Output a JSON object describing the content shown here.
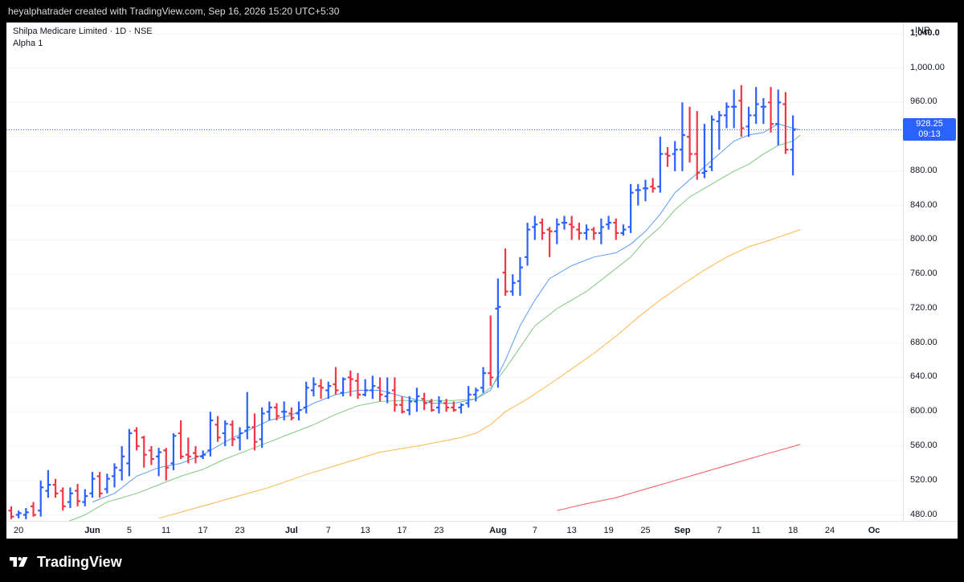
{
  "header": {
    "attribution": "heyalphatrader created with TradingView.com, Sep 16, 2026 15:20 UTC+5:30"
  },
  "legend": {
    "symbol_line": "Shilpa Medicare Limited · 1D · NSE",
    "indicator": "Alpha 1"
  },
  "yaxis": {
    "unit": "INR",
    "labels": [
      "1,040.0",
      "1,000.00",
      "960.00",
      "920.00",
      "880.00",
      "840.00",
      "800.00",
      "760.00",
      "720.00",
      "680.00",
      "640.00",
      "600.00",
      "560.00",
      "520.00",
      "480.00"
    ]
  },
  "xaxis": {
    "labels": [
      "20",
      "Jun",
      "5",
      "11",
      "17",
      "23",
      "Jul",
      "7",
      "13",
      "17",
      "23",
      "Aug",
      "7",
      "13",
      "19",
      "25",
      "Sep",
      "7",
      "11",
      "18",
      "24",
      "Oc"
    ]
  },
  "last_price": {
    "value": "928.25",
    "countdown": "09:13"
  },
  "footer": {
    "brand": "TradingView"
  },
  "colors": {
    "up": "#2962ff",
    "down": "#f23645",
    "ma_fast": "#5b9cf6",
    "ma_mid": "#81c784",
    "ma_slow": "#ffb74d",
    "ma_long": "#f7525f",
    "price_line": "#2962ff"
  },
  "chart_data": {
    "type": "ohlc",
    "title": "Shilpa Medicare Limited · 1D · NSE",
    "ylim": [
      473,
      1053
    ],
    "bars": [
      {
        "o": 485,
        "h": 490,
        "l": 475,
        "c": 478
      },
      {
        "o": 480,
        "h": 485,
        "l": 476,
        "c": 482
      },
      {
        "o": 480,
        "h": 488,
        "l": 475,
        "c": 483
      },
      {
        "o": 490,
        "h": 495,
        "l": 478,
        "c": 480
      },
      {
        "o": 485,
        "h": 520,
        "l": 478,
        "c": 512
      },
      {
        "o": 508,
        "h": 532,
        "l": 500,
        "c": 515
      },
      {
        "o": 515,
        "h": 522,
        "l": 500,
        "c": 505
      },
      {
        "o": 508,
        "h": 512,
        "l": 485,
        "c": 490
      },
      {
        "o": 495,
        "h": 512,
        "l": 488,
        "c": 505
      },
      {
        "o": 508,
        "h": 516,
        "l": 490,
        "c": 496
      },
      {
        "o": 495,
        "h": 510,
        "l": 490,
        "c": 502
      },
      {
        "o": 505,
        "h": 530,
        "l": 500,
        "c": 522
      },
      {
        "o": 525,
        "h": 530,
        "l": 500,
        "c": 505
      },
      {
        "o": 510,
        "h": 528,
        "l": 505,
        "c": 522
      },
      {
        "o": 525,
        "h": 540,
        "l": 512,
        "c": 535
      },
      {
        "o": 532,
        "h": 560,
        "l": 520,
        "c": 548
      },
      {
        "o": 540,
        "h": 580,
        "l": 525,
        "c": 575
      },
      {
        "o": 578,
        "h": 582,
        "l": 555,
        "c": 560
      },
      {
        "o": 570,
        "h": 572,
        "l": 535,
        "c": 550
      },
      {
        "o": 555,
        "h": 560,
        "l": 538,
        "c": 545
      },
      {
        "o": 548,
        "h": 558,
        "l": 525,
        "c": 553
      },
      {
        "o": 555,
        "h": 558,
        "l": 520,
        "c": 535
      },
      {
        "o": 540,
        "h": 575,
        "l": 532,
        "c": 572
      },
      {
        "o": 575,
        "h": 590,
        "l": 545,
        "c": 548
      },
      {
        "o": 550,
        "h": 570,
        "l": 540,
        "c": 548
      },
      {
        "o": 552,
        "h": 560,
        "l": 540,
        "c": 548
      },
      {
        "o": 548,
        "h": 555,
        "l": 545,
        "c": 550
      },
      {
        "o": 555,
        "h": 600,
        "l": 548,
        "c": 590
      },
      {
        "o": 585,
        "h": 595,
        "l": 565,
        "c": 570
      },
      {
        "o": 575,
        "h": 590,
        "l": 560,
        "c": 586
      },
      {
        "o": 585,
        "h": 590,
        "l": 560,
        "c": 568
      },
      {
        "o": 570,
        "h": 582,
        "l": 555,
        "c": 575
      },
      {
        "o": 578,
        "h": 623,
        "l": 568,
        "c": 582
      },
      {
        "o": 582,
        "h": 598,
        "l": 555,
        "c": 565
      },
      {
        "o": 568,
        "h": 605,
        "l": 558,
        "c": 598
      },
      {
        "o": 600,
        "h": 612,
        "l": 590,
        "c": 605
      },
      {
        "o": 605,
        "h": 610,
        "l": 590,
        "c": 595
      },
      {
        "o": 600,
        "h": 612,
        "l": 590,
        "c": 600
      },
      {
        "o": 598,
        "h": 605,
        "l": 590,
        "c": 593
      },
      {
        "o": 598,
        "h": 612,
        "l": 590,
        "c": 602
      },
      {
        "o": 605,
        "h": 635,
        "l": 598,
        "c": 628
      },
      {
        "o": 625,
        "h": 640,
        "l": 618,
        "c": 632
      },
      {
        "o": 630,
        "h": 638,
        "l": 615,
        "c": 628
      },
      {
        "o": 625,
        "h": 635,
        "l": 615,
        "c": 630
      },
      {
        "o": 632,
        "h": 652,
        "l": 620,
        "c": 625
      },
      {
        "o": 622,
        "h": 640,
        "l": 618,
        "c": 638
      },
      {
        "o": 640,
        "h": 648,
        "l": 618,
        "c": 638
      },
      {
        "o": 636,
        "h": 645,
        "l": 615,
        "c": 620
      },
      {
        "o": 620,
        "h": 638,
        "l": 618,
        "c": 625
      },
      {
        "o": 625,
        "h": 642,
        "l": 615,
        "c": 630
      },
      {
        "o": 628,
        "h": 640,
        "l": 612,
        "c": 620
      },
      {
        "o": 618,
        "h": 640,
        "l": 610,
        "c": 622
      },
      {
        "o": 625,
        "h": 640,
        "l": 600,
        "c": 608
      },
      {
        "o": 608,
        "h": 618,
        "l": 598,
        "c": 600
      },
      {
        "o": 602,
        "h": 618,
        "l": 596,
        "c": 612
      },
      {
        "o": 612,
        "h": 628,
        "l": 600,
        "c": 618
      },
      {
        "o": 615,
        "h": 622,
        "l": 602,
        "c": 610
      },
      {
        "o": 612,
        "h": 615,
        "l": 600,
        "c": 602
      },
      {
        "o": 605,
        "h": 618,
        "l": 598,
        "c": 612
      },
      {
        "o": 610,
        "h": 615,
        "l": 600,
        "c": 605
      },
      {
        "o": 605,
        "h": 612,
        "l": 600,
        "c": 602
      },
      {
        "o": 605,
        "h": 610,
        "l": 598,
        "c": 608
      },
      {
        "o": 610,
        "h": 630,
        "l": 605,
        "c": 620
      },
      {
        "o": 620,
        "h": 628,
        "l": 612,
        "c": 625
      },
      {
        "o": 628,
        "h": 652,
        "l": 622,
        "c": 645
      },
      {
        "o": 645,
        "h": 712,
        "l": 630,
        "c": 640
      },
      {
        "o": 720,
        "h": 755,
        "l": 628,
        "c": 722
      },
      {
        "o": 762,
        "h": 790,
        "l": 735,
        "c": 740
      },
      {
        "o": 740,
        "h": 760,
        "l": 735,
        "c": 750
      },
      {
        "o": 752,
        "h": 780,
        "l": 735,
        "c": 768
      },
      {
        "o": 780,
        "h": 820,
        "l": 770,
        "c": 812
      },
      {
        "o": 815,
        "h": 828,
        "l": 800,
        "c": 818
      },
      {
        "o": 820,
        "h": 825,
        "l": 800,
        "c": 808
      },
      {
        "o": 812,
        "h": 815,
        "l": 780,
        "c": 810
      },
      {
        "o": 810,
        "h": 825,
        "l": 795,
        "c": 818
      },
      {
        "o": 820,
        "h": 828,
        "l": 812,
        "c": 820
      },
      {
        "o": 818,
        "h": 828,
        "l": 800,
        "c": 815
      },
      {
        "o": 812,
        "h": 820,
        "l": 800,
        "c": 808
      },
      {
        "o": 808,
        "h": 818,
        "l": 800,
        "c": 812
      },
      {
        "o": 812,
        "h": 815,
        "l": 800,
        "c": 808
      },
      {
        "o": 808,
        "h": 825,
        "l": 795,
        "c": 815
      },
      {
        "o": 818,
        "h": 828,
        "l": 812,
        "c": 820
      },
      {
        "o": 820,
        "h": 825,
        "l": 800,
        "c": 808
      },
      {
        "o": 808,
        "h": 818,
        "l": 805,
        "c": 812
      },
      {
        "o": 815,
        "h": 865,
        "l": 808,
        "c": 855
      },
      {
        "o": 858,
        "h": 865,
        "l": 840,
        "c": 858
      },
      {
        "o": 860,
        "h": 870,
        "l": 845,
        "c": 860
      },
      {
        "o": 862,
        "h": 872,
        "l": 855,
        "c": 860
      },
      {
        "o": 862,
        "h": 920,
        "l": 855,
        "c": 900
      },
      {
        "o": 900,
        "h": 908,
        "l": 885,
        "c": 898
      },
      {
        "o": 900,
        "h": 915,
        "l": 880,
        "c": 905
      },
      {
        "o": 905,
        "h": 960,
        "l": 880,
        "c": 922
      },
      {
        "o": 920,
        "h": 955,
        "l": 890,
        "c": 900
      },
      {
        "o": 900,
        "h": 950,
        "l": 870,
        "c": 878
      },
      {
        "o": 878,
        "h": 935,
        "l": 872,
        "c": 880
      },
      {
        "o": 885,
        "h": 945,
        "l": 880,
        "c": 940
      },
      {
        "o": 938,
        "h": 950,
        "l": 905,
        "c": 945
      },
      {
        "o": 945,
        "h": 960,
        "l": 930,
        "c": 955
      },
      {
        "o": 955,
        "h": 975,
        "l": 930,
        "c": 955
      },
      {
        "o": 962,
        "h": 980,
        "l": 920,
        "c": 930
      },
      {
        "o": 932,
        "h": 955,
        "l": 920,
        "c": 945
      },
      {
        "o": 945,
        "h": 978,
        "l": 935,
        "c": 958
      },
      {
        "o": 955,
        "h": 965,
        "l": 935,
        "c": 955
      },
      {
        "o": 960,
        "h": 978,
        "l": 925,
        "c": 935
      },
      {
        "o": 935,
        "h": 975,
        "l": 910,
        "c": 960
      },
      {
        "o": 958,
        "h": 972,
        "l": 900,
        "c": 905
      },
      {
        "o": 905,
        "h": 945,
        "l": 875,
        "c": 928
      }
    ],
    "moving_averages": [
      {
        "color": "#5b9cf6",
        "points": [
          [
            11,
            495
          ],
          [
            14,
            505
          ],
          [
            17,
            525
          ],
          [
            20,
            535
          ],
          [
            23,
            540
          ],
          [
            26,
            550
          ],
          [
            29,
            565
          ],
          [
            32,
            578
          ],
          [
            35,
            590
          ],
          [
            38,
            596
          ],
          [
            41,
            610
          ],
          [
            44,
            620
          ],
          [
            47,
            625
          ],
          [
            50,
            625
          ],
          [
            53,
            618
          ],
          [
            57,
            610
          ],
          [
            60,
            610
          ],
          [
            63,
            615
          ],
          [
            65,
            625
          ],
          [
            67,
            660
          ],
          [
            69,
            700
          ],
          [
            71,
            730
          ],
          [
            73,
            755
          ],
          [
            76,
            770
          ],
          [
            79,
            780
          ],
          [
            82,
            785
          ],
          [
            84,
            795
          ],
          [
            86,
            810
          ],
          [
            88,
            830
          ],
          [
            90,
            855
          ],
          [
            92,
            870
          ],
          [
            94,
            885
          ],
          [
            96,
            900
          ],
          [
            98,
            915
          ],
          [
            100,
            922
          ],
          [
            102,
            925
          ],
          [
            104,
            935
          ],
          [
            106,
            930
          ],
          [
            107,
            928
          ]
        ]
      },
      {
        "color": "#81c784",
        "points": [
          [
            7,
            470
          ],
          [
            10,
            480
          ],
          [
            13,
            495
          ],
          [
            17,
            505
          ],
          [
            20,
            515
          ],
          [
            23,
            525
          ],
          [
            26,
            533
          ],
          [
            29,
            545
          ],
          [
            32,
            555
          ],
          [
            35,
            565
          ],
          [
            38,
            575
          ],
          [
            41,
            585
          ],
          [
            44,
            597
          ],
          [
            47,
            607
          ],
          [
            50,
            612
          ],
          [
            53,
            613
          ],
          [
            57,
            613
          ],
          [
            60,
            613
          ],
          [
            63,
            615
          ],
          [
            65,
            628
          ],
          [
            67,
            650
          ],
          [
            69,
            675
          ],
          [
            71,
            700
          ],
          [
            74,
            720
          ],
          [
            78,
            740
          ],
          [
            81,
            760
          ],
          [
            84,
            780
          ],
          [
            86,
            800
          ],
          [
            88,
            815
          ],
          [
            90,
            835
          ],
          [
            92,
            850
          ],
          [
            94,
            860
          ],
          [
            96,
            870
          ],
          [
            98,
            880
          ],
          [
            100,
            888
          ],
          [
            102,
            900
          ],
          [
            104,
            910
          ],
          [
            106,
            915
          ],
          [
            107,
            922
          ]
        ]
      },
      {
        "color": "#ffb74d",
        "points": [
          [
            20,
            476
          ],
          [
            25,
            488
          ],
          [
            30,
            500
          ],
          [
            35,
            512
          ],
          [
            40,
            527
          ],
          [
            45,
            540
          ],
          [
            50,
            553
          ],
          [
            55,
            560
          ],
          [
            58,
            565
          ],
          [
            61,
            570
          ],
          [
            63,
            575
          ],
          [
            65,
            585
          ],
          [
            67,
            600
          ],
          [
            70,
            615
          ],
          [
            73,
            632
          ],
          [
            76,
            650
          ],
          [
            79,
            668
          ],
          [
            82,
            688
          ],
          [
            85,
            710
          ],
          [
            88,
            730
          ],
          [
            91,
            748
          ],
          [
            94,
            765
          ],
          [
            97,
            780
          ],
          [
            100,
            792
          ],
          [
            103,
            800
          ],
          [
            107,
            812
          ]
        ]
      },
      {
        "color": "#f7525f",
        "points": [
          [
            74,
            485
          ],
          [
            78,
            493
          ],
          [
            82,
            500
          ],
          [
            86,
            510
          ],
          [
            90,
            520
          ],
          [
            94,
            530
          ],
          [
            98,
            540
          ],
          [
            102,
            550
          ],
          [
            107,
            562
          ]
        ]
      }
    ]
  }
}
